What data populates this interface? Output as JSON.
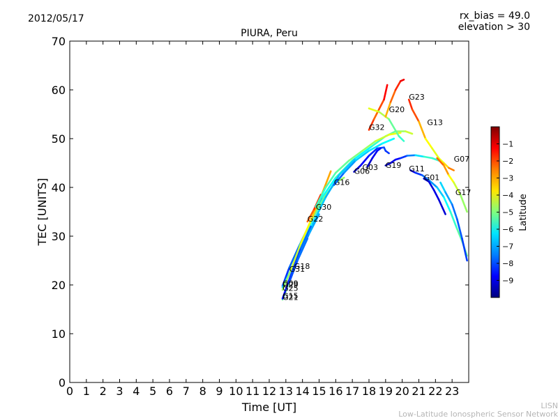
{
  "header": {
    "date": "2012/05/17",
    "rx_bias": "rx_bias = 49.0",
    "elevation": "elevation > 30"
  },
  "watermark": {
    "line1": "LISN",
    "line2": "Low-Latitude Ionospheric Sensor Network"
  },
  "chart_data": {
    "type": "scatter",
    "title": "PIURA, Peru",
    "xlabel": "Time [UT]",
    "ylabel": "TEC [UNITS]",
    "xlim": [
      0,
      24
    ],
    "ylim": [
      0,
      70
    ],
    "xticks": [
      "0",
      "1",
      "2",
      "3",
      "4",
      "5",
      "6",
      "7",
      "8",
      "9",
      "10",
      "11",
      "12",
      "13",
      "14",
      "15",
      "16",
      "17",
      "18",
      "19",
      "20",
      "21",
      "22",
      "23"
    ],
    "yticks": [
      "0",
      "10",
      "20",
      "30",
      "40",
      "50",
      "60",
      "70"
    ],
    "grid": false,
    "colorbar": {
      "label": "Latitude",
      "range": [
        -10,
        0
      ],
      "ticks": [
        "-1",
        "-2",
        "-3",
        "-4",
        "-5",
        "-6",
        "-7",
        "-8",
        "-9"
      ],
      "colormap": "jet"
    },
    "series": [
      {
        "name": "G09",
        "points": [
          [
            12.8,
            19.8,
            -8.5
          ],
          [
            13.2,
            23.5,
            -8.0
          ],
          [
            13.8,
            28,
            -7.5
          ],
          [
            14.5,
            33,
            -7.0
          ],
          [
            15.2,
            38,
            -6.5
          ],
          [
            16,
            42,
            -6.0
          ],
          [
            17,
            45.5,
            -5.5
          ],
          [
            18,
            48,
            -5.5
          ]
        ]
      },
      {
        "name": "G29",
        "points": [
          [
            12.8,
            19.5,
            -7.0
          ],
          [
            13.3,
            23,
            -6.5
          ],
          [
            13.9,
            28,
            -6.0
          ],
          [
            14.6,
            33.5,
            -5.5
          ],
          [
            15.3,
            38,
            -5.0
          ],
          [
            16,
            41,
            -5.0
          ],
          [
            16.5,
            42,
            -4.5
          ]
        ]
      },
      {
        "name": "G25",
        "points": [
          [
            12.8,
            19,
            -5.0
          ],
          [
            13.3,
            23,
            -4.5
          ],
          [
            13.9,
            28.5,
            -4.0
          ],
          [
            14.6,
            34,
            -3.5
          ],
          [
            15.1,
            38,
            -3.0
          ],
          [
            15.7,
            43.3,
            -2.8
          ]
        ]
      },
      {
        "name": "G21",
        "points": [
          [
            12.8,
            17,
            -5.0
          ],
          [
            13.3,
            21.5,
            -5.5
          ],
          [
            13.9,
            27,
            -6.0
          ],
          [
            14.6,
            32.5,
            -6.5
          ],
          [
            15.4,
            38,
            -7.0
          ],
          [
            16.2,
            42.5,
            -7.0
          ],
          [
            17.2,
            46,
            -6.5
          ],
          [
            18.2,
            48.5,
            -6.0
          ],
          [
            19,
            50.5,
            -5.5
          ],
          [
            19.6,
            51.5,
            -5.0
          ],
          [
            20.2,
            51.5,
            -4.5
          ],
          [
            20.6,
            51,
            -4.0
          ]
        ]
      },
      {
        "name": "G15",
        "points": [
          [
            12.8,
            17.2,
            -8.8
          ],
          [
            13.3,
            22,
            -8.5
          ],
          [
            13.9,
            27.5,
            -8.0
          ],
          [
            14.5,
            32,
            -7.5
          ]
        ]
      },
      {
        "name": "G18",
        "points": [
          [
            13.3,
            21.5,
            -8.0
          ],
          [
            13.8,
            26,
            -7.5
          ],
          [
            14.4,
            30.5,
            -7.2
          ],
          [
            15,
            34.5,
            -7.0
          ]
        ]
      },
      {
        "name": "G31",
        "points": [
          [
            13.2,
            20.5,
            -8.2
          ],
          [
            13.7,
            25,
            -7.8
          ],
          [
            14.3,
            29.5,
            -7.5
          ]
        ]
      },
      {
        "name": "G22",
        "points": [
          [
            14.3,
            33,
            -2.5
          ],
          [
            14.7,
            35.5,
            -2.0
          ],
          [
            15.1,
            38.5,
            -1.5
          ]
        ]
      },
      {
        "name": "G30",
        "points": [
          [
            14.8,
            36,
            -6.0
          ],
          [
            15.4,
            40,
            -5.5
          ],
          [
            16,
            43,
            -5.5
          ],
          [
            16.8,
            45.5,
            -5.0
          ],
          [
            17.6,
            47.5,
            -5.0
          ],
          [
            18.4,
            49.5,
            -4.5
          ],
          [
            19.2,
            50.8,
            -4.0
          ],
          [
            19.9,
            51.2,
            -3.8
          ]
        ]
      },
      {
        "name": "G16",
        "points": [
          [
            15.9,
            40.5,
            -8.0
          ],
          [
            16.5,
            43,
            -7.5
          ],
          [
            17.2,
            45.5,
            -7.0
          ],
          [
            18,
            47.5,
            -6.5
          ],
          [
            18.8,
            49,
            -6.5
          ],
          [
            19.5,
            50,
            -6.0
          ]
        ]
      },
      {
        "name": "G06",
        "points": [
          [
            17.1,
            43.2,
            -9.3
          ],
          [
            17.5,
            44.5,
            -9.0
          ],
          [
            18,
            46.5,
            -8.5
          ],
          [
            18.5,
            48,
            -8.2
          ],
          [
            18.9,
            48.2,
            -8.0
          ],
          [
            19,
            47.5,
            -8.0
          ],
          [
            19.2,
            47,
            -8.5
          ]
        ]
      },
      {
        "name": "G03",
        "points": [
          [
            17.9,
            44.2,
            -9.5
          ],
          [
            18.2,
            46,
            -9.0
          ],
          [
            18.5,
            47.5,
            -8.8
          ],
          [
            18.7,
            48,
            -8.5
          ]
        ]
      },
      {
        "name": "G32",
        "points": [
          [
            18,
            51.8,
            -1.5
          ],
          [
            18.3,
            54,
            -2.0
          ],
          [
            18.6,
            56,
            -2.5
          ],
          [
            18.9,
            58,
            -1.5
          ],
          [
            19.1,
            61,
            -1.0
          ]
        ]
      },
      {
        "name": "G20",
        "points": [
          [
            18,
            56.2,
            -4.0
          ],
          [
            18.6,
            55.5,
            -4.0
          ],
          [
            19.2,
            54,
            -5.0
          ],
          [
            19.8,
            50.5,
            -5.5
          ],
          [
            20.1,
            49.5,
            -6.0
          ]
        ]
      },
      {
        "name": "G23",
        "points": [
          [
            19,
            54.5,
            -3.5
          ],
          [
            19.3,
            57.5,
            -2.5
          ],
          [
            19.6,
            60,
            -2.0
          ],
          [
            19.9,
            61.8,
            -1.2
          ],
          [
            20.1,
            62.1,
            -1.0
          ]
        ]
      },
      {
        "name": "G19",
        "points": [
          [
            19,
            44.5,
            -9.5
          ],
          [
            19.3,
            45,
            -9.2
          ],
          [
            19.6,
            45.7,
            -9.0
          ],
          [
            19.9,
            46,
            -8.5
          ],
          [
            20.3,
            46.5,
            -8.0
          ],
          [
            20.8,
            46.6,
            -7.0
          ],
          [
            21.3,
            46.3,
            -6.0
          ],
          [
            21.8,
            46,
            -5.5
          ],
          [
            22.2,
            45.5,
            -6.0
          ]
        ]
      },
      {
        "name": "G11",
        "points": [
          [
            20.5,
            43.5,
            -9.5
          ],
          [
            20.8,
            43,
            -8.5
          ],
          [
            21.2,
            42.5,
            -8.0
          ],
          [
            21.6,
            41.5,
            -7.5
          ],
          [
            22.1,
            40,
            -7.0
          ],
          [
            22.5,
            38,
            -6.5
          ],
          [
            22.9,
            35,
            -6.0
          ],
          [
            23.3,
            31.5,
            -5.5
          ],
          [
            23.6,
            29,
            -5.2
          ],
          [
            23.9,
            26,
            -5.0
          ]
        ]
      },
      {
        "name": "G13",
        "points": [
          [
            20.4,
            58,
            -1.8
          ],
          [
            20.6,
            56,
            -1.5
          ],
          [
            21,
            53.5,
            -2.5
          ],
          [
            21.4,
            50,
            -3.5
          ],
          [
            21.8,
            48,
            -4.0
          ],
          [
            22.2,
            46,
            -4.0
          ],
          [
            22.5,
            45,
            -3.8
          ],
          [
            22.8,
            44,
            -3.0
          ],
          [
            23.1,
            43.5,
            -2.0
          ]
        ]
      },
      {
        "name": "G01",
        "points": [
          [
            21.3,
            41.8,
            -9.5
          ],
          [
            21.6,
            41.2,
            -9.2
          ],
          [
            21.9,
            39.5,
            -9.0
          ],
          [
            22.2,
            37.5,
            -9.0
          ],
          [
            22.6,
            34.5,
            -9.3
          ]
        ]
      },
      {
        "name": "G07",
        "points": [
          [
            22.1,
            46,
            -2.5
          ],
          [
            22.5,
            44.5,
            -2.0
          ],
          [
            22.8,
            42.5,
            -3.5
          ],
          [
            23.1,
            41,
            -4.0
          ],
          [
            23.5,
            38.5,
            -4.5
          ],
          [
            23.9,
            35,
            -5.0
          ]
        ]
      },
      {
        "name": "G17",
        "points": [
          [
            22.3,
            41,
            -6.5
          ],
          [
            22.6,
            39,
            -6.8
          ],
          [
            23,
            36.5,
            -7.5
          ],
          [
            23.3,
            33.5,
            -7.8
          ],
          [
            23.6,
            29.5,
            -8.0
          ],
          [
            23.9,
            25,
            -8.3
          ]
        ]
      }
    ],
    "prn_labels": [
      {
        "text": "G09",
        "x": 12.8,
        "y": 19.8
      },
      {
        "text": "G29",
        "x": 12.8,
        "y": 19.5
      },
      {
        "text": "G25",
        "x": 12.8,
        "y": 18.8
      },
      {
        "text": "G21",
        "x": 12.8,
        "y": 16.9
      },
      {
        "text": "G15",
        "x": 12.8,
        "y": 17.2
      },
      {
        "text": "G18",
        "x": 13.5,
        "y": 23.3
      },
      {
        "text": "G31",
        "x": 13.2,
        "y": 22.7
      },
      {
        "text": "G22",
        "x": 14.3,
        "y": 33.0
      },
      {
        "text": "G30",
        "x": 14.8,
        "y": 35.4
      },
      {
        "text": "G16",
        "x": 15.9,
        "y": 40.5
      },
      {
        "text": "G06",
        "x": 17.1,
        "y": 42.8
      },
      {
        "text": "G03",
        "x": 17.6,
        "y": 43.6
      },
      {
        "text": "G32",
        "x": 18.0,
        "y": 51.8
      },
      {
        "text": "G20",
        "x": 19.2,
        "y": 55.4
      },
      {
        "text": "G23",
        "x": 20.4,
        "y": 58.0
      },
      {
        "text": "G19",
        "x": 19.0,
        "y": 44.0
      },
      {
        "text": "G11",
        "x": 20.4,
        "y": 43.3
      },
      {
        "text": "G13",
        "x": 21.5,
        "y": 52.8
      },
      {
        "text": "G01",
        "x": 21.3,
        "y": 41.5
      },
      {
        "text": "G07",
        "x": 23.1,
        "y": 45.3
      },
      {
        "text": "G17",
        "x": 23.2,
        "y": 38.4
      }
    ]
  }
}
